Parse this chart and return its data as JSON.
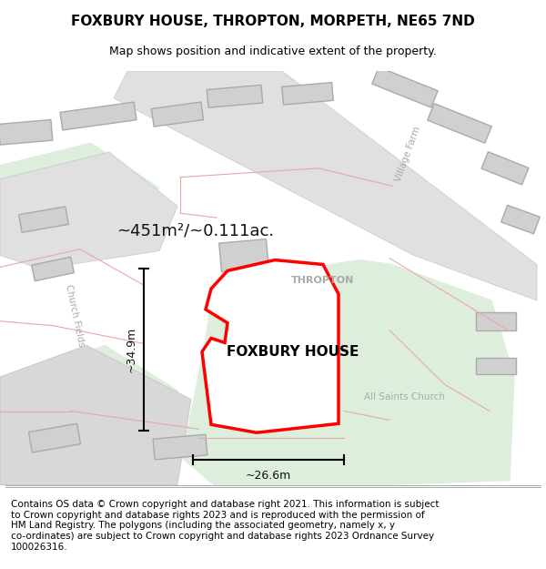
{
  "title": "FOXBURY HOUSE, THROPTON, MORPETH, NE65 7ND",
  "subtitle": "Map shows position and indicative extent of the property.",
  "footer": "Contains OS data © Crown copyright and database right 2021. This information is subject\nto Crown copyright and database rights 2023 and is reproduced with the permission of\nHM Land Registry. The polygons (including the associated geometry, namely x, y\nco-ordinates) are subject to Crown copyright and database rights 2023 Ordnance Survey\n100026316.",
  "area_label": "~451m²/~0.111ac.",
  "property_label": "FOXBURY HOUSE",
  "width_label": "~26.6m",
  "height_label": "~34.9m",
  "road_label_1": "THROPTON",
  "road_label_2": "Village Farm",
  "road_label_3": "Church Fields",
  "place_label": "All Saints Church",
  "bg_color": "#ffffff",
  "map_bg": "#f0f0f0",
  "road_color": "#e0e0e0",
  "road_outline_color": "#c8c8c8",
  "building_color": "#d0d0d0",
  "green_area_color": "#ddeedd",
  "property_fill": "#ffffff",
  "property_outline": "#ff0000",
  "road_line_color": "#e8a8a8",
  "dim_line_color": "#000000",
  "title_fontsize": 11,
  "subtitle_fontsize": 9,
  "footer_fontsize": 7.5
}
